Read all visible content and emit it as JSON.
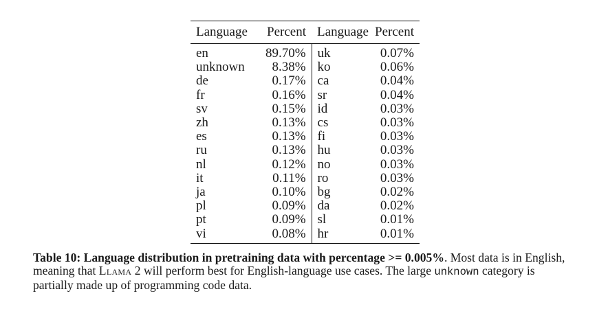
{
  "table": {
    "headers": [
      "Language",
      "Percent",
      "Language",
      "Percent"
    ],
    "rows": [
      [
        "en",
        "89.70%",
        "uk",
        "0.07%"
      ],
      [
        "unknown",
        "8.38%",
        "ko",
        "0.06%"
      ],
      [
        "de",
        "0.17%",
        "ca",
        "0.04%"
      ],
      [
        "fr",
        "0.16%",
        "sr",
        "0.04%"
      ],
      [
        "sv",
        "0.15%",
        "id",
        "0.03%"
      ],
      [
        "zh",
        "0.13%",
        "cs",
        "0.03%"
      ],
      [
        "es",
        "0.13%",
        "fi",
        "0.03%"
      ],
      [
        "ru",
        "0.13%",
        "hu",
        "0.03%"
      ],
      [
        "nl",
        "0.12%",
        "no",
        "0.03%"
      ],
      [
        "it",
        "0.11%",
        "ro",
        "0.03%"
      ],
      [
        "ja",
        "0.10%",
        "bg",
        "0.02%"
      ],
      [
        "pl",
        "0.09%",
        "da",
        "0.02%"
      ],
      [
        "pt",
        "0.09%",
        "sl",
        "0.01%"
      ],
      [
        "vi",
        "0.08%",
        "hr",
        "0.01%"
      ]
    ]
  },
  "caption": {
    "bold": "Table 10: Language distribution in pretraining data with percentage >= 0.005%",
    "after_bold": ". Most data is in English,",
    "line2_pre": "meaning that ",
    "model_name": "Llama",
    "line2_post": " 2 will perform best for English-language use cases. The large ",
    "mono_term": "unknown",
    "line2_end": " category is",
    "line3": "partially made up of programming code data."
  }
}
